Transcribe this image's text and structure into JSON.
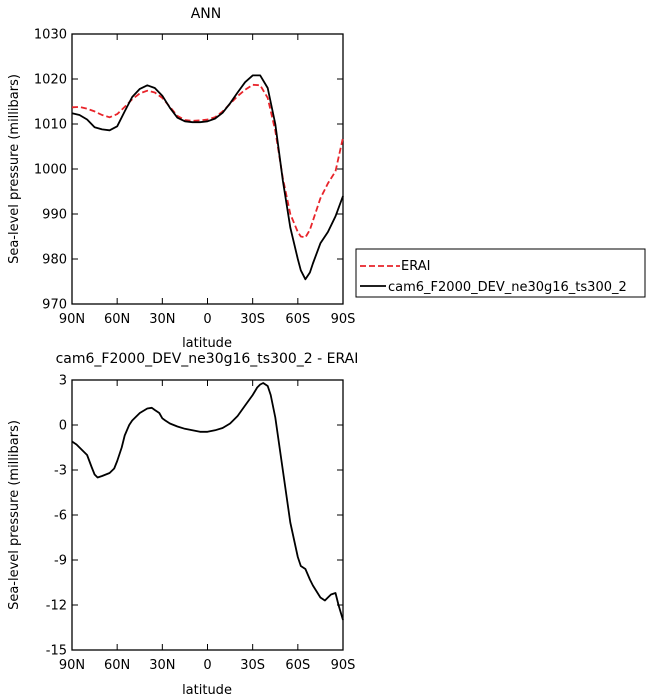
{
  "chart_data": [
    {
      "type": "line",
      "title": "ANN",
      "xlabel": "latitude",
      "ylabel": "Sea-level pressure (millibars)",
      "xlim": [
        90,
        -90
      ],
      "ylim": [
        970,
        1030
      ],
      "x_ticks": [
        90,
        60,
        30,
        0,
        -30,
        -60,
        -90
      ],
      "x_tick_labels": [
        "90N",
        "60N",
        "30N",
        "0",
        "30S",
        "60S",
        "90S"
      ],
      "y_ticks": [
        970,
        980,
        990,
        1000,
        1010,
        1020,
        1030
      ],
      "y_tick_labels": [
        "970",
        "980",
        "990",
        "1000",
        "1010",
        "1020",
        "1030"
      ],
      "grid": false,
      "legend_position": "right",
      "series": [
        {
          "name": "ERAI",
          "color": "#e8242a",
          "dash": "dashed",
          "x": [
            90,
            85,
            80,
            75,
            70,
            65,
            60,
            55,
            50,
            45,
            40,
            35,
            30,
            25,
            20,
            15,
            10,
            5,
            0,
            -5,
            -10,
            -15,
            -20,
            -25,
            -30,
            -35,
            -40,
            -45,
            -50,
            -55,
            -60,
            -62,
            -65,
            -68,
            -70,
            -75,
            -80,
            -85,
            -90
          ],
          "values": [
            1013.7,
            1013.8,
            1013.4,
            1012.8,
            1012.0,
            1011.5,
            1012.2,
            1013.8,
            1015.5,
            1016.8,
            1017.4,
            1017.0,
            1015.8,
            1013.8,
            1011.8,
            1010.9,
            1010.7,
            1010.8,
            1011.0,
            1011.5,
            1012.8,
            1014.5,
            1016.2,
            1017.6,
            1018.7,
            1018.6,
            1015.8,
            1008.5,
            998.0,
            990.0,
            986.0,
            985.0,
            984.8,
            986.5,
            988.5,
            993.5,
            996.8,
            999.5,
            1007.0
          ]
        },
        {
          "name": "cam6_F2000_DEV_ne30g16_ts300_2",
          "color": "#000000",
          "dash": "solid",
          "x": [
            90,
            85,
            80,
            75,
            70,
            65,
            60,
            55,
            50,
            45,
            40,
            35,
            30,
            25,
            20,
            15,
            10,
            5,
            0,
            -5,
            -10,
            -15,
            -20,
            -25,
            -30,
            -35,
            -40,
            -45,
            -50,
            -55,
            -60,
            -62,
            -65,
            -68,
            -70,
            -75,
            -80,
            -85,
            -90
          ],
          "values": [
            1012.4,
            1012.0,
            1011.0,
            1009.3,
            1008.8,
            1008.6,
            1009.5,
            1012.8,
            1016.0,
            1017.8,
            1018.6,
            1018.0,
            1016.3,
            1013.6,
            1011.4,
            1010.6,
            1010.4,
            1010.4,
            1010.6,
            1011.2,
            1012.5,
            1014.6,
            1017.0,
            1019.3,
            1020.8,
            1020.8,
            1018.0,
            1010.0,
            997.5,
            987.0,
            980.0,
            977.5,
            975.5,
            977.0,
            979.0,
            983.5,
            986.0,
            989.5,
            994.0
          ]
        }
      ]
    },
    {
      "type": "line",
      "title": "cam6_F2000_DEV_ne30g16_ts300_2 - ERAI",
      "xlabel": "latitude",
      "ylabel": "Sea-level pressure (millibars)",
      "xlim": [
        90,
        -90
      ],
      "ylim": [
        -15,
        3
      ],
      "x_ticks": [
        90,
        60,
        30,
        0,
        -30,
        -60,
        -90
      ],
      "x_tick_labels": [
        "90N",
        "60N",
        "30N",
        "0",
        "30S",
        "60S",
        "90S"
      ],
      "y_ticks": [
        3,
        0,
        -3,
        -6,
        -9,
        -12,
        -15
      ],
      "y_tick_labels": [
        "3",
        "0",
        "-3",
        "-6",
        "-9",
        "-12",
        "-15"
      ],
      "grid": false,
      "series": [
        {
          "color": "#000000",
          "dash": "solid",
          "x": [
            90,
            87,
            85,
            80,
            77,
            75,
            73,
            70,
            65,
            62,
            60,
            57,
            55,
            52,
            50,
            45,
            40,
            37,
            35,
            32,
            30,
            28,
            25,
            20,
            15,
            10,
            5,
            0,
            -5,
            -10,
            -15,
            -20,
            -25,
            -30,
            -33,
            -35,
            -37,
            -40,
            -42,
            -45,
            -50,
            -55,
            -60,
            -62,
            -65,
            -68,
            -70,
            -75,
            -78,
            -80,
            -82,
            -85,
            -87,
            -90
          ],
          "values": [
            -1.1,
            -1.3,
            -1.5,
            -2.0,
            -2.8,
            -3.3,
            -3.5,
            -3.4,
            -3.2,
            -2.9,
            -2.4,
            -1.5,
            -0.7,
            0.0,
            0.3,
            0.8,
            1.1,
            1.15,
            1.0,
            0.8,
            0.45,
            0.3,
            0.1,
            -0.1,
            -0.25,
            -0.35,
            -0.45,
            -0.45,
            -0.35,
            -0.2,
            0.1,
            0.6,
            1.3,
            2.0,
            2.5,
            2.7,
            2.8,
            2.6,
            2.0,
            0.5,
            -3.0,
            -6.5,
            -8.8,
            -9.4,
            -9.6,
            -10.3,
            -10.7,
            -11.5,
            -11.7,
            -11.5,
            -11.3,
            -11.2,
            -12.0,
            -13.0
          ]
        }
      ]
    }
  ]
}
